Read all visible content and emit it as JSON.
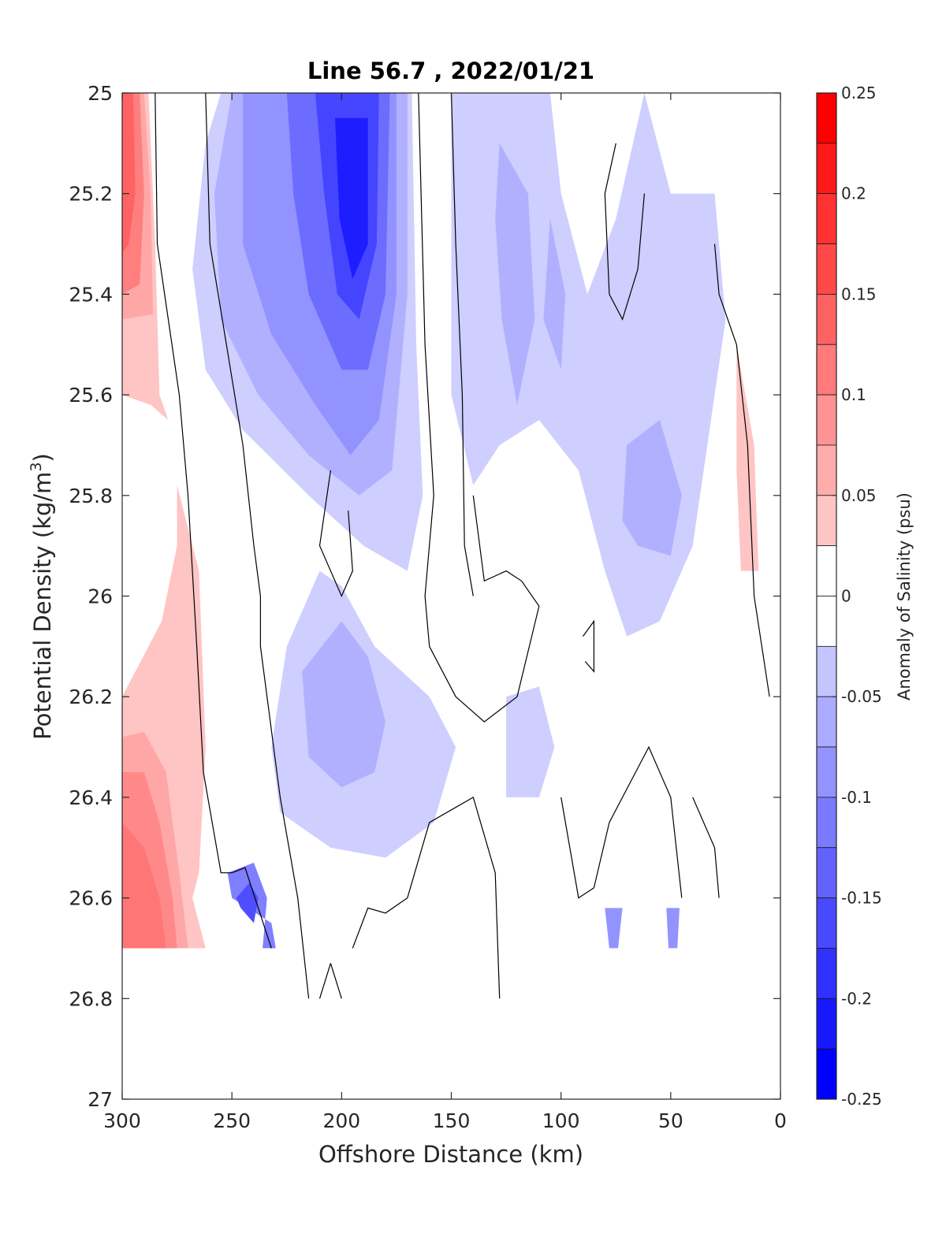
{
  "chart_data": {
    "type": "heatmap",
    "title": "Line 56.7 , 2022/01/21",
    "xlabel": "Offshore Distance (km)",
    "ylabel_main": "Potential Density (kg/m",
    "ylabel_sup": "3",
    "ylabel_end": ")",
    "xlim": [
      300,
      0
    ],
    "ylim": [
      25,
      27
    ],
    "y_reversed": true,
    "x_ticks": [
      "300",
      "250",
      "200",
      "150",
      "100",
      "50",
      "0"
    ],
    "y_ticks": [
      "25",
      "25.2",
      "25.4",
      "25.6",
      "25.8",
      "26",
      "26.2",
      "26.4",
      "26.6",
      "26.8",
      "27"
    ],
    "colorbar": {
      "label": "Anomaly of Salinity (psu)",
      "range": [
        -0.25,
        0.25
      ],
      "step": 0.025,
      "ticks": [
        "0.25",
        "0.2",
        "0.15",
        "0.1",
        "0.05",
        "0",
        "-0.05",
        "-0.1",
        "-0.15",
        "-0.2",
        "-0.25"
      ],
      "tick_values": [
        0.25,
        0.2,
        0.15,
        0.1,
        0.05,
        0,
        -0.05,
        -0.1,
        -0.15,
        -0.2,
        -0.25
      ]
    },
    "anomaly_features": [
      {
        "name": "coastal-positive-upper",
        "x": [
          300,
          285
        ],
        "y": [
          25,
          25.6
        ],
        "peak": 0.15
      },
      {
        "name": "coastal-positive-lower",
        "x": [
          300,
          275
        ],
        "y": [
          26.2,
          26.7
        ],
        "peak": 0.125
      },
      {
        "name": "core-negative-upper",
        "x": [
          255,
          170
        ],
        "y": [
          25,
          25.9
        ],
        "peak": -0.225
      },
      {
        "name": "negative-mid",
        "x": [
          225,
          150
        ],
        "y": [
          25.9,
          26.55
        ],
        "peak": -0.1
      },
      {
        "name": "negative-bottom-small",
        "x": [
          250,
          230
        ],
        "y": [
          26.5,
          26.7
        ],
        "peak": -0.175
      },
      {
        "name": "offshore-negative",
        "x": [
          150,
          25
        ],
        "y": [
          25,
          26.4
        ],
        "peak": -0.1
      },
      {
        "name": "nearshore-positive",
        "x": [
          20,
          5
        ],
        "y": [
          25.5,
          25.95
        ],
        "peak": 0.05
      }
    ]
  }
}
